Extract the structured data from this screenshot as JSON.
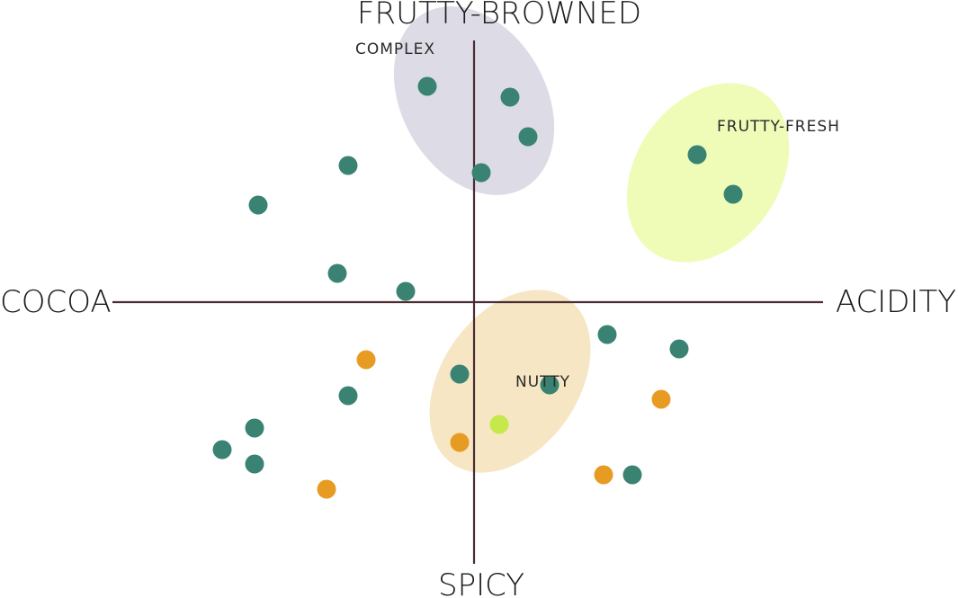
{
  "chart_data": {
    "type": "scatter",
    "title": "",
    "axes": {
      "left": "COCOA",
      "right": "ACIDITY",
      "top": "FRUTTY-BROWNED",
      "bottom": "SPICY"
    },
    "xlim": [
      -100,
      100
    ],
    "ylim": [
      -100,
      100
    ],
    "clusters": [
      {
        "label": "COMPLEX",
        "cx": 0,
        "cy": 56,
        "rx": 20,
        "ry": 28,
        "rotate": -30,
        "color": "#dddbe5"
      },
      {
        "label": "FRUTTY-FRESH",
        "cx": 65,
        "cy": 36,
        "rx": 20,
        "ry": 27,
        "rotate": 35,
        "color": "#eefcb8"
      },
      {
        "label": "NUTTY",
        "cx": 10,
        "cy": -22,
        "rx": 19,
        "ry": 28,
        "rotate": 35,
        "color": "#f6e6c4"
      }
    ],
    "series": [
      {
        "color": "#3a8373",
        "points": [
          [
            -13,
            60
          ],
          [
            10,
            57
          ],
          [
            15,
            46
          ],
          [
            2,
            36
          ],
          [
            -35,
            38
          ],
          [
            -60,
            27
          ],
          [
            -38,
            8
          ],
          [
            -19,
            3
          ],
          [
            62,
            41
          ],
          [
            72,
            30
          ],
          [
            37,
            -9
          ],
          [
            57,
            -13
          ],
          [
            -4,
            -20
          ],
          [
            21,
            -23
          ],
          [
            -35,
            -26
          ],
          [
            -61,
            -35
          ],
          [
            -70,
            -41
          ],
          [
            -61,
            -45
          ],
          [
            44,
            -48
          ]
        ]
      },
      {
        "color": "#e89b23",
        "points": [
          [
            -30,
            -16
          ],
          [
            52,
            -27
          ],
          [
            -4,
            -39
          ],
          [
            36,
            -48
          ],
          [
            -41,
            -52
          ]
        ]
      },
      {
        "color": "#c5e84a",
        "points": [
          [
            7,
            -34
          ]
        ]
      }
    ]
  }
}
